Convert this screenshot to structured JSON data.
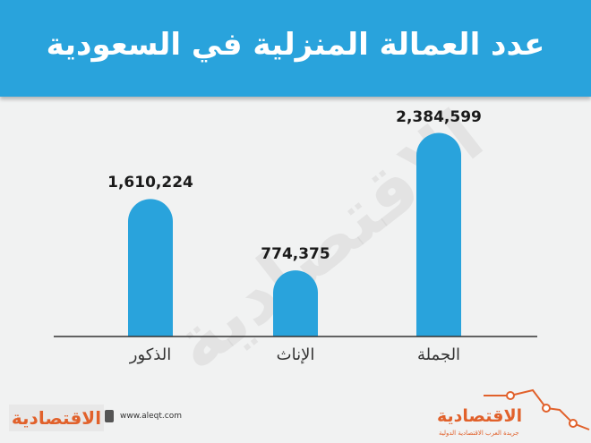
{
  "header": {
    "title": "عدد العمالة المنزلية في السعودية"
  },
  "chart_data": {
    "type": "bar",
    "categories": [
      "الذكور",
      "الإناث",
      "الجملة"
    ],
    "values": [
      1610224,
      774375,
      2384599
    ],
    "value_labels": [
      "1,610,224",
      "774,375",
      "2,384,599"
    ],
    "title": "عدد العمالة المنزلية في السعودية",
    "xlabel": "",
    "ylabel": "",
    "ylim": [
      0,
      2600000
    ],
    "grid": false,
    "bar_color": "#29a3dc"
  },
  "watermark": "الاقتصادية",
  "footer": {
    "brand_left": "الاقتصادية",
    "url": "www.aleqt.com",
    "brand_right": "الاقتصادية",
    "brand_right_sub": "جريدة العرب الاقتصادية الدولية"
  },
  "colors": {
    "header_bg": "#29a3dc",
    "bar": "#29a3dc",
    "brand": "#e1612b",
    "background": "#f1f2f2"
  }
}
